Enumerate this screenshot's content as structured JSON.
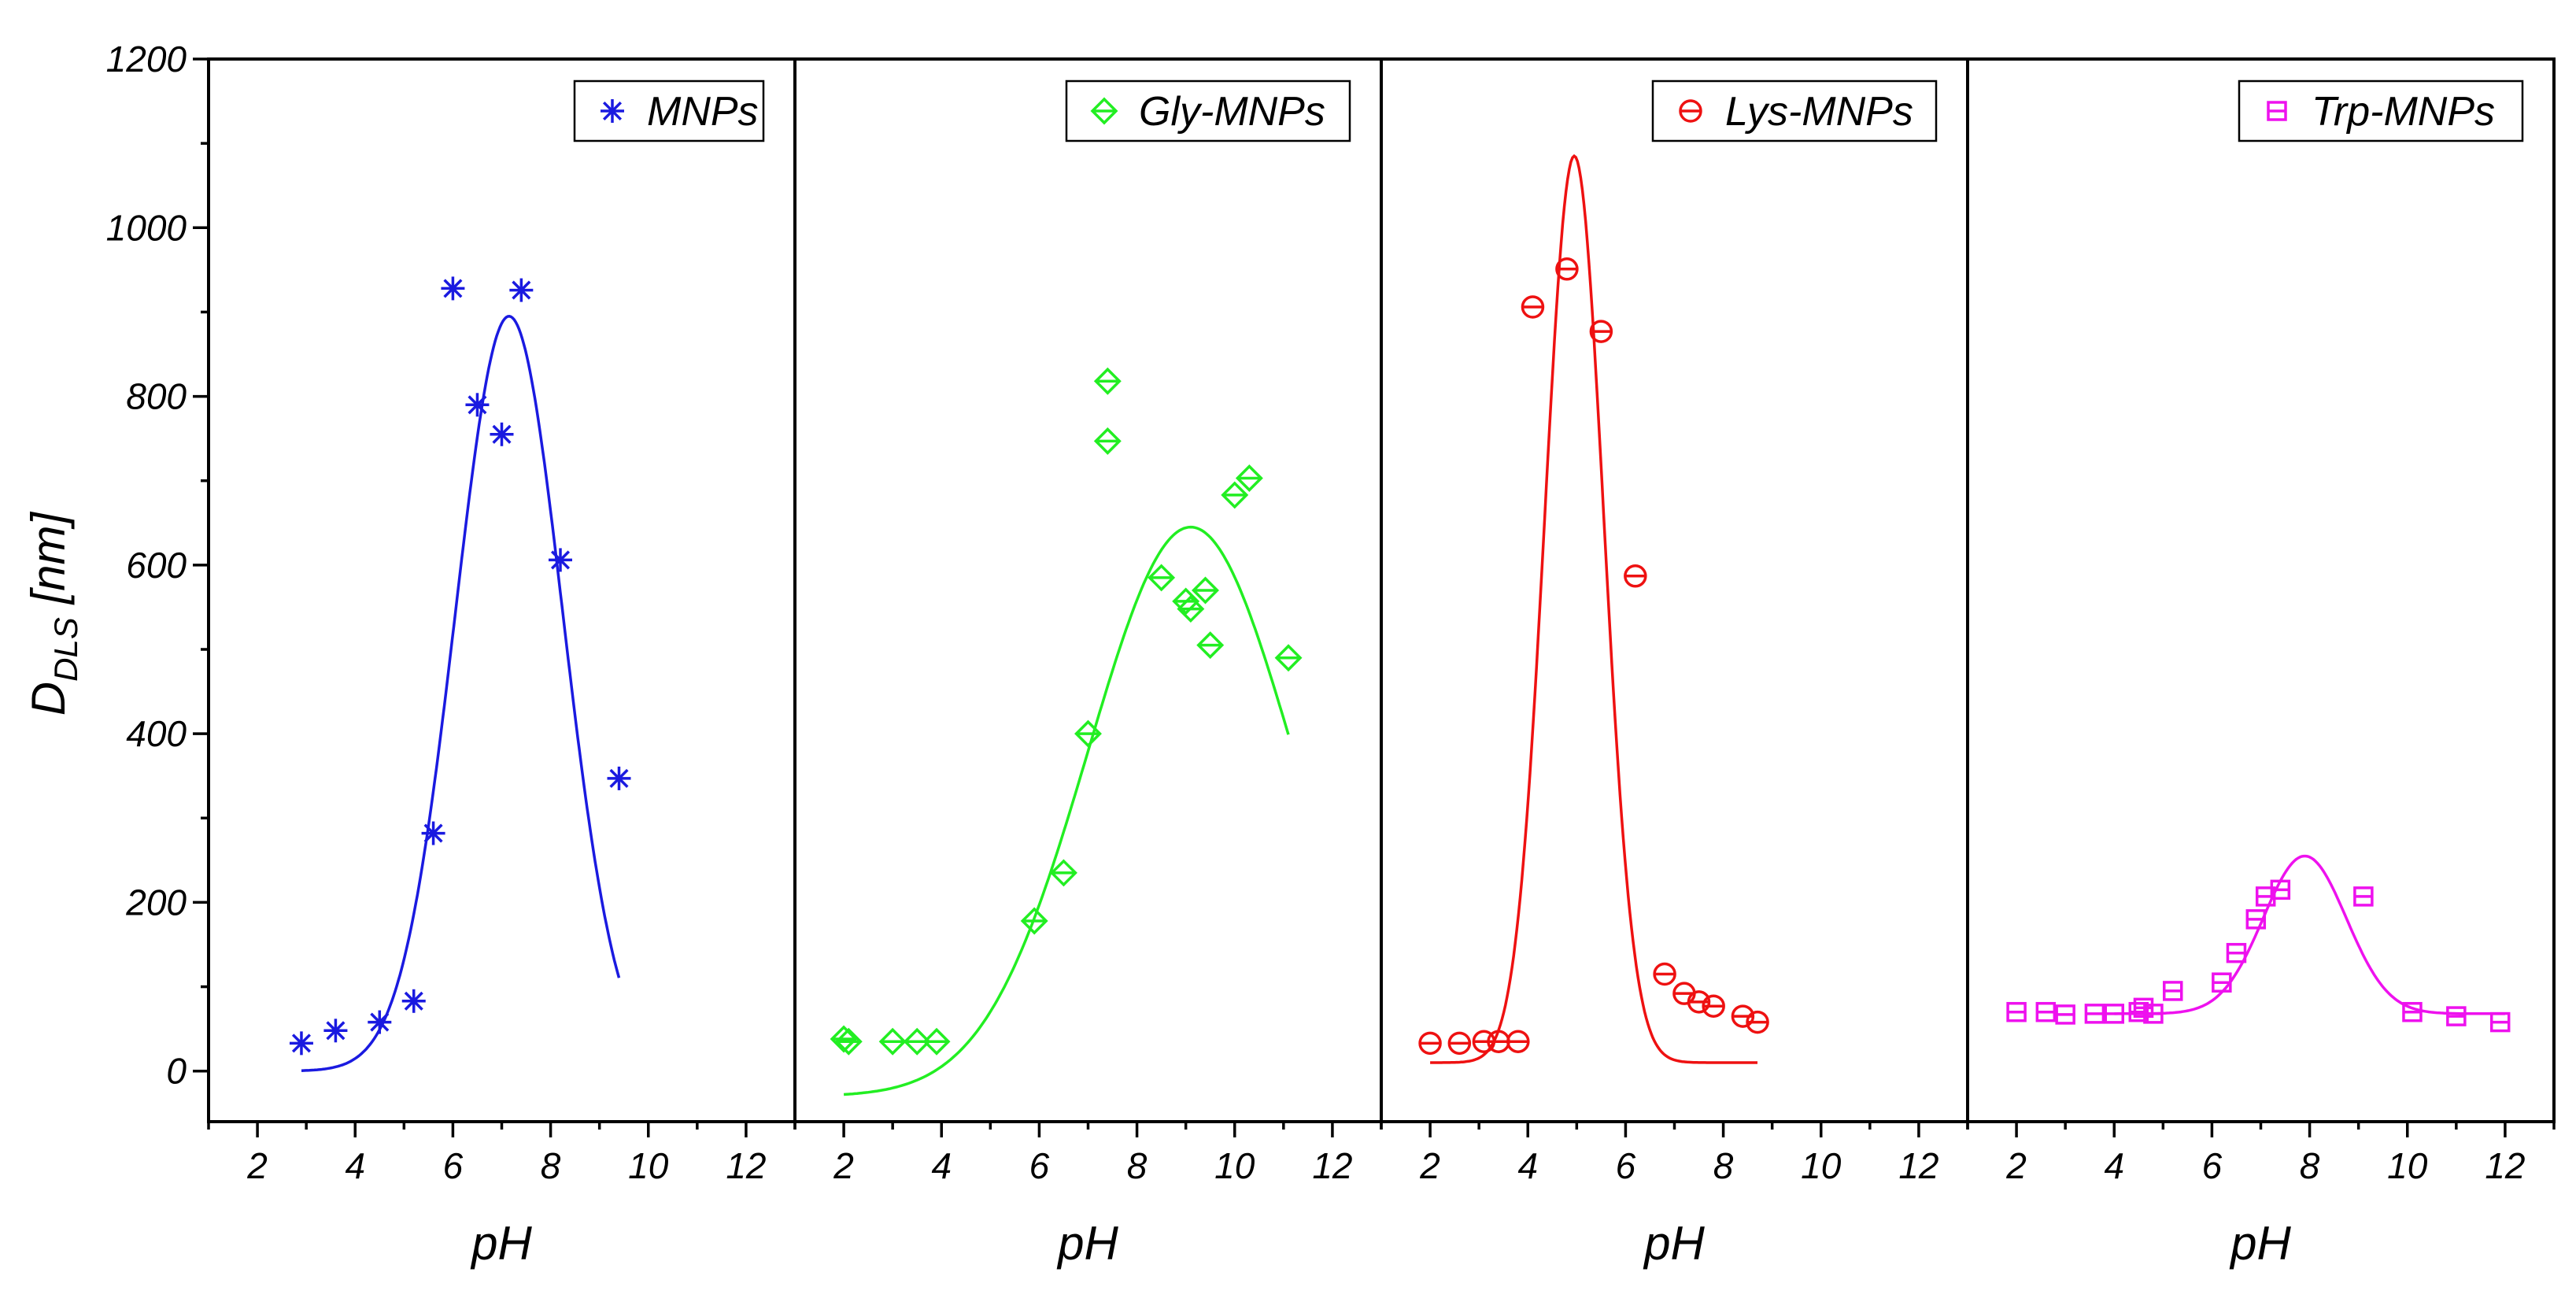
{
  "chart_data": {
    "type": "scatter",
    "title": "",
    "ylabel": "D",
    "ylabel_subscript": "DLS",
    "ylabel_unit": " [nm]",
    "ylim": [
      -60,
      1200
    ],
    "yticks": [
      0,
      200,
      400,
      600,
      800,
      1000,
      1200
    ],
    "yticklabels": [
      "0",
      "200",
      "400",
      "600",
      "800",
      "1000",
      "1200"
    ],
    "panels": [
      {
        "name": "MNPs",
        "legend": "MNPs",
        "color": "#1a1ae0",
        "marker": "asterisk",
        "xlabel": "pH",
        "xlim": [
          1,
          13
        ],
        "xticks": [
          2,
          4,
          6,
          8,
          10,
          12
        ],
        "xticklabels": [
          "2",
          "4",
          "6",
          "8",
          "10",
          "12"
        ],
        "x": [
          2.9,
          3.6,
          4.5,
          5.2,
          5.6,
          6.0,
          6.5,
          7.0,
          7.4,
          8.2,
          9.4
        ],
        "y": [
          33,
          48,
          58,
          83,
          282,
          928,
          790,
          755,
          926,
          606,
          347
        ],
        "fit": {
          "type": "gaussian",
          "x_range": [
            2.9,
            9.4
          ],
          "baseline": 0,
          "amplitude": 895,
          "center": 7.15,
          "width": 1.1
        }
      },
      {
        "name": "Gly-MNPs",
        "legend": "Gly-MNPs",
        "color": "#22ee22",
        "marker": "diamond",
        "xlabel": "pH",
        "xlim": [
          1,
          13
        ],
        "xticks": [
          2,
          4,
          6,
          8,
          10,
          12
        ],
        "xticklabels": [
          "2",
          "4",
          "6",
          "8",
          "10",
          "12"
        ],
        "x": [
          2.0,
          2.1,
          3.0,
          3.5,
          3.9,
          5.9,
          6.5,
          7.0,
          7.4,
          7.4,
          8.5,
          9.0,
          9.1,
          9.4,
          9.5,
          10.0,
          10.3,
          11.1
        ],
        "y": [
          38,
          35,
          35,
          35,
          35,
          178,
          235,
          400,
          818,
          747,
          585,
          557,
          548,
          570,
          505,
          683,
          703,
          490
        ],
        "fit": {
          "type": "gaussian",
          "x_range": [
            2.0,
            11.1
          ],
          "baseline": -30,
          "amplitude": 675,
          "center": 9.1,
          "width": 2.1
        }
      },
      {
        "name": "Lys-MNPs",
        "legend": "Lys-MNPs",
        "color": "#ee1111",
        "marker": "circle",
        "xlabel": "pH",
        "xlim": [
          1,
          13
        ],
        "xticks": [
          2,
          4,
          6,
          8,
          10,
          12
        ],
        "xticklabels": [
          "2",
          "4",
          "6",
          "8",
          "10",
          "12"
        ],
        "x": [
          2.0,
          2.6,
          3.1,
          3.4,
          3.8,
          4.1,
          4.8,
          5.5,
          6.2,
          6.8,
          7.2,
          7.5,
          7.8,
          8.4,
          8.7
        ],
        "y": [
          33,
          33,
          35,
          35,
          35,
          906,
          951,
          877,
          587,
          115,
          92,
          82,
          77,
          65,
          58
        ],
        "fit": {
          "type": "gaussian",
          "x_range": [
            2.0,
            8.7
          ],
          "baseline": 10,
          "amplitude": 1075,
          "center": 4.95,
          "width": 0.6
        }
      },
      {
        "name": "Trp-MNPs",
        "legend": "Trp-MNPs",
        "color": "#ee11ee",
        "marker": "square",
        "xlabel": "pH",
        "xlim": [
          1,
          13
        ],
        "xticks": [
          2,
          4,
          6,
          8,
          10,
          12
        ],
        "xticklabels": [
          "2",
          "4",
          "6",
          "8",
          "10",
          "12"
        ],
        "x": [
          2.0,
          2.6,
          3.0,
          3.6,
          4.0,
          4.5,
          4.6,
          4.8,
          5.2,
          6.2,
          6.5,
          6.9,
          7.1,
          7.4,
          9.1,
          10.1,
          11.0,
          11.9
        ],
        "y": [
          70,
          70,
          67,
          68,
          68,
          70,
          75,
          68,
          95,
          105,
          140,
          180,
          207,
          215,
          207,
          70,
          65,
          58
        ],
        "fit": {
          "type": "gaussian",
          "x_range": [
            4.0,
            12.0
          ],
          "baseline": 68,
          "amplitude": 187,
          "center": 7.9,
          "width": 0.85
        }
      }
    ]
  }
}
